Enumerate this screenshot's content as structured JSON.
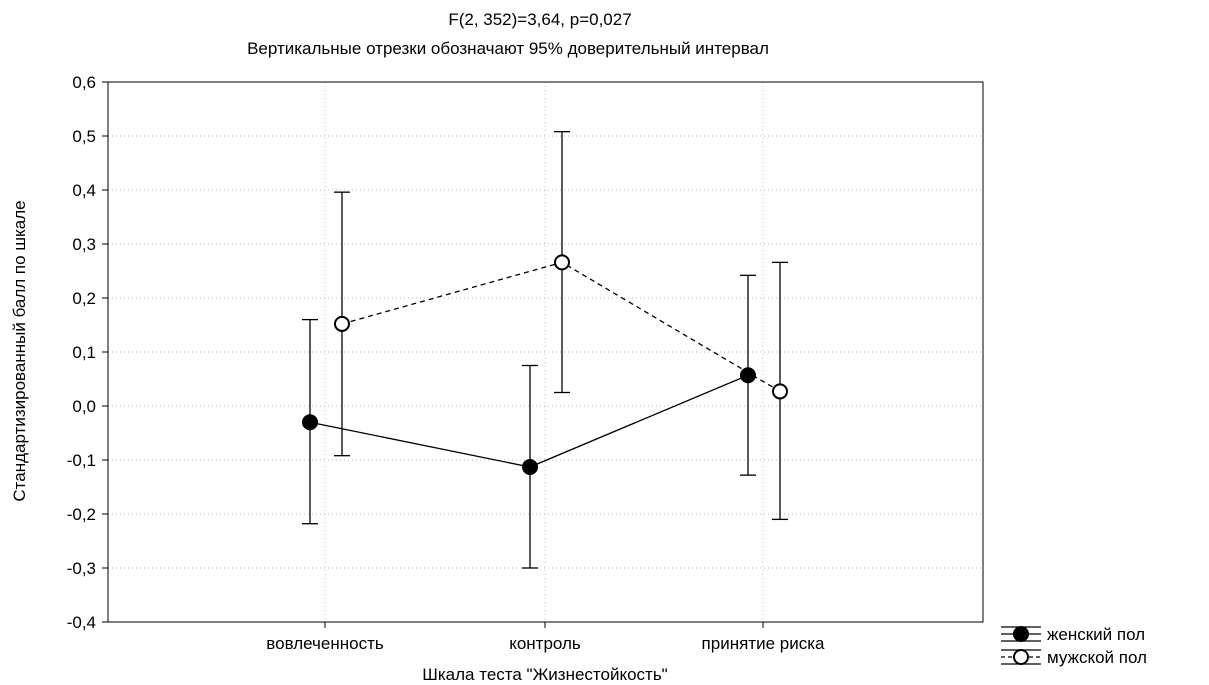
{
  "chart_data": {
    "type": "line",
    "title": "F(2, 352)=3,64, p=0,027",
    "subtitle": "Вертикальные отрезки обозначают 95% доверительный интервал",
    "xlabel": "Шкала теста \"Жизнестойкость\"",
    "ylabel": "Стандартизированный балл по шкале",
    "categories": [
      "вовлеченность",
      "контроль",
      "принятие риска"
    ],
    "ylim": [
      -0.4,
      0.6
    ],
    "yticks": [
      0.6,
      0.5,
      0.4,
      0.3,
      0.2,
      0.1,
      0.0,
      -0.1,
      -0.2,
      -0.3,
      -0.4
    ],
    "ytick_labels": [
      "0,6",
      "0,5",
      "0,4",
      "0,3",
      "0,2",
      "0,1",
      "0,0",
      "-0,1",
      "-0,2",
      "-0,3",
      "-0,4"
    ],
    "grid": true,
    "legend_position": "bottom-right",
    "series": [
      {
        "name": "женский пол",
        "marker": "filled-circle",
        "line_style": "solid",
        "color": "#000000",
        "values": [
          -0.03,
          -0.113,
          0.057
        ],
        "ci_low": [
          -0.218,
          -0.3,
          -0.128
        ],
        "ci_high": [
          0.16,
          0.075,
          0.242
        ]
      },
      {
        "name": "мужской пол",
        "marker": "open-circle",
        "line_style": "dashed",
        "color": "#000000",
        "values": [
          0.152,
          0.266,
          0.027
        ],
        "ci_low": [
          -0.092,
          0.025,
          -0.21
        ],
        "ci_high": [
          0.396,
          0.508,
          0.266
        ]
      }
    ]
  }
}
